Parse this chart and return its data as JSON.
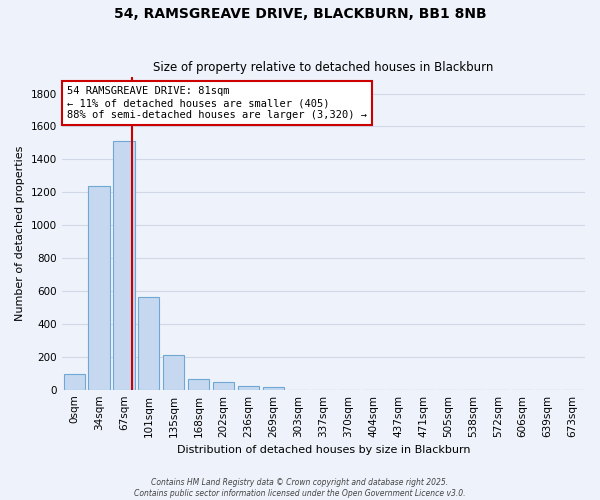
{
  "title": "54, RAMSGREAVE DRIVE, BLACKBURN, BB1 8NB",
  "subtitle": "Size of property relative to detached houses in Blackburn",
  "xlabel": "Distribution of detached houses by size in Blackburn",
  "ylabel": "Number of detached properties",
  "bar_labels": [
    "0sqm",
    "34sqm",
    "67sqm",
    "101sqm",
    "135sqm",
    "168sqm",
    "202sqm",
    "236sqm",
    "269sqm",
    "303sqm",
    "337sqm",
    "370sqm",
    "404sqm",
    "437sqm",
    "471sqm",
    "505sqm",
    "538sqm",
    "572sqm",
    "606sqm",
    "639sqm",
    "673sqm"
  ],
  "bar_values": [
    95,
    1235,
    1510,
    565,
    210,
    65,
    48,
    25,
    15,
    0,
    0,
    0,
    0,
    0,
    0,
    0,
    0,
    0,
    0,
    0,
    0
  ],
  "bar_color": "#c5d8f0",
  "bar_edge_color": "#6fa8d4",
  "vline_color": "#cc0000",
  "vline_x_index": 2.32,
  "ylim": [
    0,
    1900
  ],
  "yticks": [
    0,
    200,
    400,
    600,
    800,
    1000,
    1200,
    1400,
    1600,
    1800
  ],
  "annotation_title": "54 RAMSGREAVE DRIVE: 81sqm",
  "annotation_line1": "← 11% of detached houses are smaller (405)",
  "annotation_line2": "88% of semi-detached houses are larger (3,320) →",
  "annotation_box_color": "white",
  "annotation_box_edge": "#cc0000",
  "background_color": "#eef2fa",
  "grid_color": "#d0d8e8",
  "footer_line1": "Contains HM Land Registry data © Crown copyright and database right 2025.",
  "footer_line2": "Contains public sector information licensed under the Open Government Licence v3.0."
}
